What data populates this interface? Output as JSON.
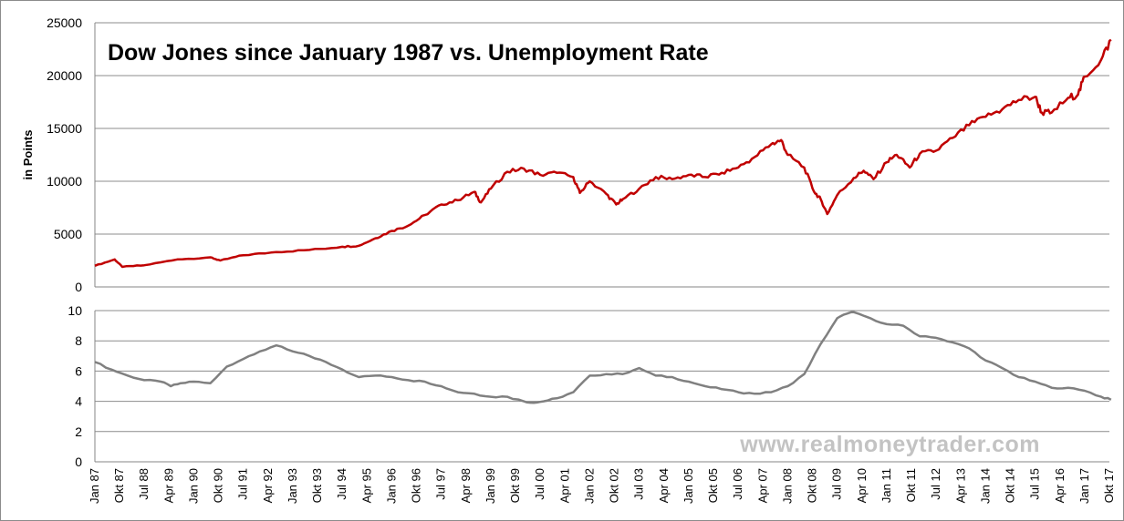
{
  "chart_data": [
    {
      "type": "line",
      "title": "Dow Jones since January 1987 vs. Unemployment Rate",
      "ylabel": "in Points",
      "ylim": [
        0,
        25000
      ],
      "y_ticks": [
        "0",
        "5000",
        "10000",
        "15000",
        "20000",
        "25000"
      ],
      "grid": true,
      "series": [
        {
          "color": "#c00000",
          "x": [
            1987.0,
            1987.6,
            1987.83,
            1988.5,
            1989.5,
            1990.5,
            1990.8,
            1991.5,
            1992.5,
            1993.5,
            1994.5,
            1995.0,
            1995.5,
            1996.0,
            1996.5,
            1997.0,
            1997.5,
            1998.0,
            1998.5,
            1998.7,
            1999.0,
            1999.5,
            2000.0,
            2000.5,
            2001.0,
            2001.5,
            2001.7,
            2002.0,
            2002.5,
            2002.8,
            2003.0,
            2003.5,
            2004.0,
            2004.5,
            2005.0,
            2005.5,
            2006.0,
            2006.5,
            2007.0,
            2007.5,
            2007.8,
            2008.0,
            2008.5,
            2008.8,
            2009.0,
            2009.2,
            2009.5,
            2010.0,
            2010.3,
            2010.6,
            2011.0,
            2011.3,
            2011.7,
            2012.0,
            2012.5,
            2013.0,
            2013.5,
            2014.0,
            2014.5,
            2015.0,
            2015.5,
            2015.7,
            2016.0,
            2016.5,
            2016.8,
            2017.0,
            2017.5,
            2017.8
          ],
          "values": [
            2000,
            2600,
            1900,
            2050,
            2600,
            2800,
            2500,
            3000,
            3300,
            3500,
            3800,
            3900,
            4600,
            5300,
            5800,
            6800,
            7800,
            8200,
            9000,
            8000,
            9300,
            10900,
            11200,
            10600,
            10800,
            10400,
            8900,
            10000,
            8800,
            7800,
            8300,
            9300,
            10400,
            10200,
            10600,
            10400,
            10800,
            11300,
            12300,
            13500,
            13900,
            12500,
            11300,
            9000,
            8300,
            6900,
            8700,
            10300,
            11000,
            10200,
            11800,
            12500,
            11300,
            12600,
            12900,
            14100,
            15300,
            16100,
            16800,
            17700,
            18000,
            16500,
            16500,
            17900,
            18200,
            19900,
            21500,
            23400
          ]
        }
      ]
    },
    {
      "type": "line",
      "ylim": [
        0,
        10
      ],
      "y_ticks": [
        "0",
        "2",
        "4",
        "6",
        "8",
        "10"
      ],
      "grid": true,
      "x_labels": [
        "Jan 87",
        "Okt 87",
        "Jul 88",
        "Apr 89",
        "Jan 90",
        "Okt 90",
        "Jul 91",
        "Apr 92",
        "Jan 93",
        "Okt 93",
        "Jul 94",
        "Apr 95",
        "Jan 96",
        "Okt 96",
        "Jul 97",
        "Apr 98",
        "Jan 99",
        "Okt 99",
        "Jul 00",
        "Apr 01",
        "Jan 02",
        "Okt 02",
        "Jul 03",
        "Apr 04",
        "Jan 05",
        "Okt 05",
        "Jul 06",
        "Apr 07",
        "Jan 08",
        "Okt 08",
        "Jul 09",
        "Apr 10",
        "Jan 11",
        "Okt 11",
        "Jul 12",
        "Apr 13",
        "Jan 14",
        "Okt 14",
        "Jul 15",
        "Apr 16",
        "Jan 17",
        "Okt 17"
      ],
      "series": [
        {
          "color": "#808080",
          "x": [
            1987.0,
            1987.5,
            1988.0,
            1988.5,
            1989.0,
            1989.3,
            1989.6,
            1990.0,
            1990.5,
            1991.0,
            1991.5,
            1992.0,
            1992.5,
            1993.0,
            1993.5,
            1994.0,
            1994.5,
            1995.0,
            1995.5,
            1996.0,
            1996.5,
            1997.0,
            1997.5,
            1998.0,
            1998.5,
            1999.0,
            1999.5,
            2000.0,
            2000.3,
            2000.6,
            2001.0,
            2001.5,
            2002.0,
            2002.5,
            2003.0,
            2003.5,
            2004.0,
            2004.5,
            2005.0,
            2005.5,
            2006.0,
            2006.5,
            2007.0,
            2007.5,
            2008.0,
            2008.5,
            2009.0,
            2009.5,
            2009.8,
            2010.0,
            2010.5,
            2011.0,
            2011.5,
            2012.0,
            2012.5,
            2013.0,
            2013.5,
            2014.0,
            2014.5,
            2015.0,
            2015.5,
            2016.0,
            2016.5,
            2017.0,
            2017.5,
            2017.8
          ],
          "values": [
            6.6,
            6.1,
            5.7,
            5.4,
            5.3,
            5.0,
            5.2,
            5.3,
            5.2,
            6.3,
            6.8,
            7.3,
            7.7,
            7.3,
            7.0,
            6.6,
            6.1,
            5.6,
            5.7,
            5.6,
            5.4,
            5.3,
            5.0,
            4.6,
            4.5,
            4.3,
            4.3,
            4.0,
            3.9,
            4.0,
            4.2,
            4.6,
            5.7,
            5.8,
            5.8,
            6.2,
            5.7,
            5.6,
            5.3,
            5.0,
            4.8,
            4.6,
            4.5,
            4.6,
            5.0,
            5.8,
            7.8,
            9.5,
            9.8,
            9.9,
            9.5,
            9.1,
            9.0,
            8.3,
            8.2,
            7.9,
            7.5,
            6.7,
            6.2,
            5.6,
            5.3,
            4.9,
            4.9,
            4.7,
            4.3,
            4.1
          ]
        }
      ]
    }
  ],
  "watermark": "www.realmoneytrader.com"
}
